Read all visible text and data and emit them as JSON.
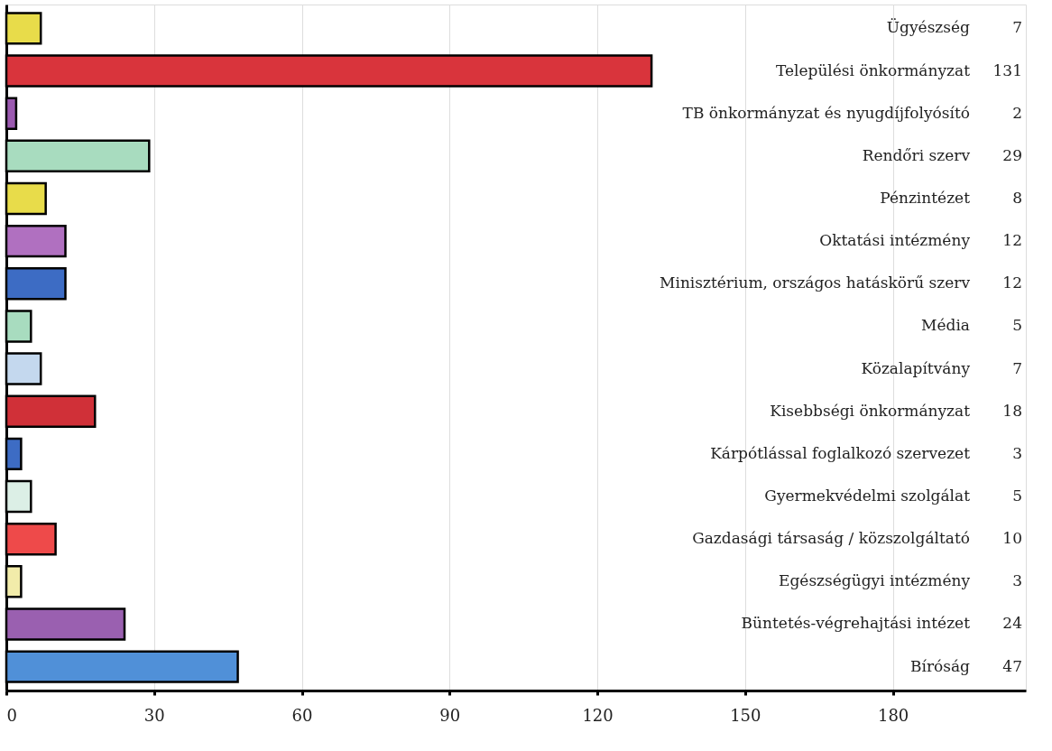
{
  "chart_data": {
    "type": "bar",
    "orientation": "horizontal",
    "categories": [
      "Ügyészség",
      "Települési önkormányzat",
      "TB önkormányzat és nyugdíjfolyósító",
      "Rendőri szerv",
      "Pénzintézet",
      "Oktatási intézmény",
      "Minisztérium, országos hatáskörű szerv",
      "Média",
      "Közalapítvány",
      "Kisebbségi önkormányzat",
      "Kárpótlással foglalkozó szervezet",
      "Gyermekvédelmi szolgálat",
      "Gazdasági társaság / közszolgáltató",
      "Egészségügyi intézmény",
      "Büntetés-végrehajtási intézet",
      "Bíróság"
    ],
    "values": [
      7,
      131,
      2,
      29,
      8,
      12,
      12,
      5,
      7,
      18,
      3,
      5,
      10,
      3,
      24,
      47
    ],
    "colors": [
      "#e8dc4a",
      "#d9343c",
      "#9b59b0",
      "#a8dcbf",
      "#e8dc4a",
      "#b070c0",
      "#3d6cc4",
      "#a8dcbf",
      "#c4d8ee",
      "#d03038",
      "#3d6cc4",
      "#dcefe6",
      "#ee4a4a",
      "#f2ecaa",
      "#9a60b0",
      "#5090d8"
    ],
    "xlim": [
      0,
      207
    ],
    "xticks": [
      0,
      30,
      60,
      90,
      120,
      150,
      180
    ],
    "grid": "x",
    "data_labels": true,
    "tick_labels": "x"
  }
}
